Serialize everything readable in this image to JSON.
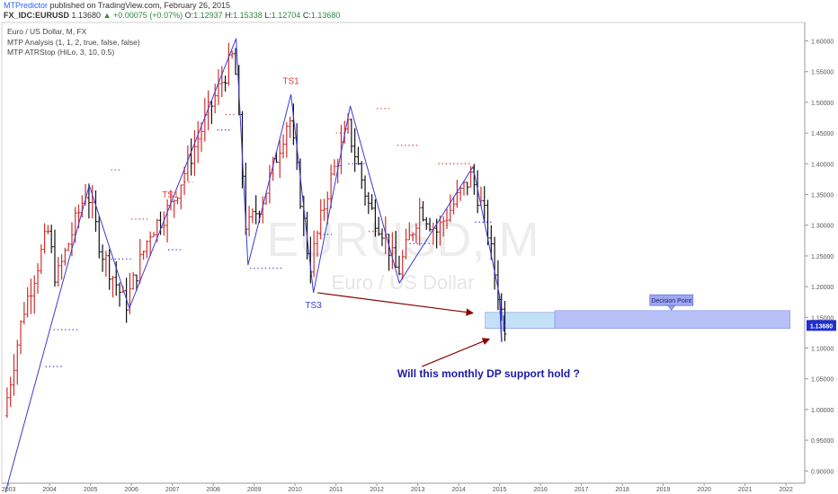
{
  "header": {
    "brand": "MTPredictor",
    "published": " published on TradingView.com, February 26, 2015",
    "symbol": "FX_IDC:EURUSD",
    "price": "1.13680",
    "change": "+0.00075 (+0.07%)",
    "open_label": "O:",
    "open": "1.12937",
    "high_label": "H:",
    "high": "1.15338",
    "low_label": "L:",
    "low": "1.12704",
    "close_label": "C:",
    "close": "1.13680"
  },
  "legend": {
    "title": "Euro / US Dollar, M, FX",
    "study1": "MTP Analysis (1, 1, 2, true, false, false)",
    "study2": "MTP ATRStop (HiLo, 3, 10, 0.5)"
  },
  "watermark": {
    "symbol": "EURUSD, M",
    "name": "Euro / US Dollar"
  },
  "colors": {
    "up_bar": "#d32f2f",
    "down_bar": "#111111",
    "swing_line": "#3b3bd6",
    "atr_red": "#e53935",
    "atr_blue": "#3b3bd6",
    "zone": "#aab6f7",
    "zone_near": "#b9dcf5",
    "arrow": "#8b0000",
    "annotation_text": "#1a1aa8",
    "price_tag": "#1f2fd0"
  },
  "chart_data": {
    "type": "ohlc",
    "x_labels": [
      "2003",
      "2004",
      "2005",
      "2006",
      "2007",
      "2008",
      "2009",
      "2010",
      "2011",
      "2012",
      "2013",
      "2014",
      "2015",
      "2016",
      "2017",
      "2018",
      "2019",
      "2020",
      "2021",
      "2022"
    ],
    "y_ticks": [
      "0.90000",
      "0.95000",
      "1.00000",
      "1.05000",
      "1.10000",
      "1.15000",
      "1.20000",
      "1.25000",
      "1.30000",
      "1.35000",
      "1.40000",
      "1.45000",
      "1.50000",
      "1.55000",
      "1.60000"
    ],
    "ylim": [
      0.88,
      1.63
    ],
    "last_price": "1.13680",
    "price_path": [
      [
        2002.92,
        0.99
      ],
      [
        2003.4,
        1.16
      ],
      [
        2004.0,
        1.29
      ],
      [
        2004.2,
        1.21
      ],
      [
        2004.95,
        1.36
      ],
      [
        2005.3,
        1.26
      ],
      [
        2005.9,
        1.17
      ],
      [
        2006.5,
        1.29
      ],
      [
        2007.0,
        1.33
      ],
      [
        2007.9,
        1.48
      ],
      [
        2008.55,
        1.58
      ],
      [
        2008.85,
        1.29
      ],
      [
        2009.3,
        1.35
      ],
      [
        2009.9,
        1.48
      ],
      [
        2010.4,
        1.23
      ],
      [
        2010.85,
        1.36
      ],
      [
        2011.33,
        1.46
      ],
      [
        2011.85,
        1.33
      ],
      [
        2012.2,
        1.29
      ],
      [
        2012.55,
        1.22
      ],
      [
        2013.1,
        1.33
      ],
      [
        2013.5,
        1.29
      ],
      [
        2014.35,
        1.38
      ],
      [
        2014.7,
        1.31
      ],
      [
        2014.95,
        1.21
      ],
      [
        2015.15,
        1.137
      ]
    ],
    "swing_points": [
      [
        2002.92,
        0.865
      ],
      [
        2004.97,
        1.365
      ],
      [
        2005.95,
        1.165
      ],
      [
        2008.56,
        1.604
      ],
      [
        2008.85,
        1.235
      ],
      [
        2009.9,
        1.513
      ],
      [
        2010.45,
        1.19
      ],
      [
        2011.35,
        1.494
      ],
      [
        2012.55,
        1.206
      ],
      [
        2014.35,
        1.395
      ],
      [
        2015.0,
        1.185
      ]
    ],
    "atr_stops": [
      {
        "color": "red",
        "x0": 2005.5,
        "x1": 2005.75,
        "y": 1.39
      },
      {
        "color": "red",
        "x0": 2006.0,
        "x1": 2006.4,
        "y": 1.31
      },
      {
        "color": "red",
        "x0": 2007.3,
        "x1": 2007.5,
        "y": 1.37
      },
      {
        "color": "red",
        "x0": 2008.3,
        "x1": 2008.55,
        "y": 1.48
      },
      {
        "color": "red",
        "x0": 2011.0,
        "x1": 2011.3,
        "y": 1.45
      },
      {
        "color": "red",
        "x0": 2012.0,
        "x1": 2012.3,
        "y": 1.49
      },
      {
        "color": "red",
        "x0": 2012.5,
        "x1": 2013.0,
        "y": 1.43
      },
      {
        "color": "red",
        "x0": 2013.5,
        "x1": 2014.3,
        "y": 1.4
      },
      {
        "color": "red",
        "x0": 2011.8,
        "x1": 2012.0,
        "y": 1.29
      },
      {
        "color": "blue",
        "x0": 2003.9,
        "x1": 2004.3,
        "y": 1.07
      },
      {
        "color": "blue",
        "x0": 2004.1,
        "x1": 2004.7,
        "y": 1.13
      },
      {
        "color": "blue",
        "x0": 2005.5,
        "x1": 2006.0,
        "y": 1.245
      },
      {
        "color": "blue",
        "x0": 2006.9,
        "x1": 2007.2,
        "y": 1.26
      },
      {
        "color": "blue",
        "x0": 2008.1,
        "x1": 2008.4,
        "y": 1.455
      },
      {
        "color": "blue",
        "x0": 2008.9,
        "x1": 2009.7,
        "y": 1.23
      },
      {
        "color": "blue",
        "x0": 2010.6,
        "x1": 2010.9,
        "y": 1.285
      },
      {
        "color": "blue",
        "x0": 2011.3,
        "x1": 2011.7,
        "y": 1.4
      },
      {
        "color": "blue",
        "x0": 2012.8,
        "x1": 2013.3,
        "y": 1.27
      },
      {
        "color": "blue",
        "x0": 2014.4,
        "x1": 2014.8,
        "y": 1.305
      }
    ],
    "labels": [
      {
        "text": "TS1",
        "x": 2009.9,
        "y": 1.53,
        "color": "red"
      },
      {
        "text": "TS1",
        "x": 2006.95,
        "y": 1.345,
        "color": "red"
      },
      {
        "text": "TS3",
        "x": 2010.45,
        "y": 1.165,
        "color": "blue"
      }
    ],
    "zones": [
      {
        "x0": 2014.65,
        "x1": 2016.35,
        "y0": 1.132,
        "y1": 1.158
      },
      {
        "x0": 2016.35,
        "x1": 2022.1,
        "y0": 1.132,
        "y1": 1.161
      }
    ],
    "decision_point": {
      "text": "Decision Point",
      "x": 2019.2,
      "y": 1.178
    },
    "annotation": {
      "text": "Will this monthly DP support hold ?",
      "x": 2012.5,
      "y": 1.06
    },
    "arrows": [
      {
        "from": [
          2010.55,
          1.19
        ],
        "to": [
          2014.35,
          1.157
        ]
      },
      {
        "from": [
          2013.1,
          1.07
        ],
        "to": [
          2014.75,
          1.115
        ]
      }
    ]
  }
}
